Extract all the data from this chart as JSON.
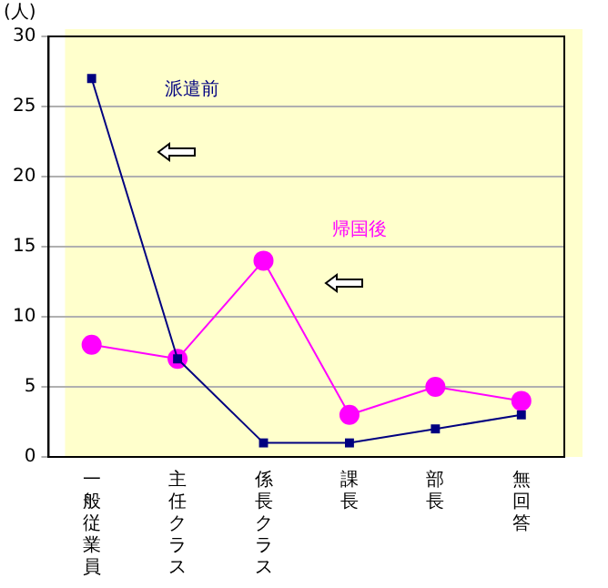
{
  "chart_data": {
    "type": "line",
    "ylabel": "(人)",
    "categories": [
      "一般従業員",
      "主任クラス",
      "係長クラス",
      "課長",
      "部長",
      "無回答"
    ],
    "series": [
      {
        "name": "派遣前",
        "color": "#000080",
        "marker": "square",
        "values": [
          27,
          7,
          1,
          1,
          2,
          3
        ]
      },
      {
        "name": "帰国後",
        "color": "#ff00ff",
        "marker": "circle",
        "values": [
          8,
          7,
          14,
          3,
          5,
          4
        ]
      }
    ],
    "ylim": [
      0,
      30
    ],
    "yticks": [
      0,
      5,
      10,
      15,
      20,
      25,
      30
    ],
    "grid": "y",
    "legend": false,
    "line_style": "solid"
  }
}
